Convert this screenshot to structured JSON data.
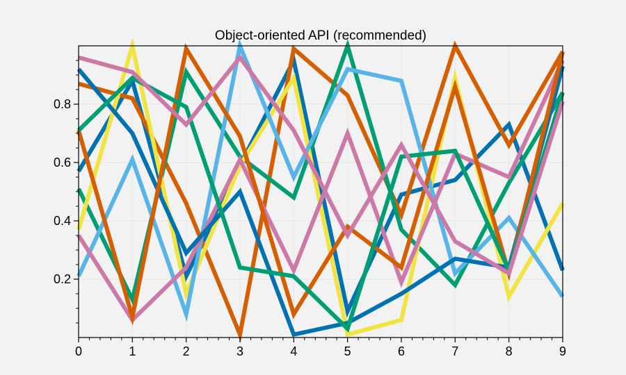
{
  "chart_data": {
    "type": "line",
    "title": "Object-oriented API (recommended)",
    "xlabel": "",
    "ylabel": "",
    "x": [
      0,
      1,
      2,
      3,
      4,
      5,
      6,
      7,
      8,
      9
    ],
    "xlim": [
      0,
      9
    ],
    "ylim": [
      0.0,
      1.0
    ],
    "x_ticks": [
      0,
      1,
      2,
      3,
      4,
      5,
      6,
      7,
      8,
      9
    ],
    "y_ticks": [
      0.2,
      0.4,
      0.6,
      0.8
    ],
    "x_tick_labels": [
      "0",
      "1",
      "2",
      "3",
      "4",
      "5",
      "6",
      "7",
      "8",
      "9"
    ],
    "y_tick_labels": [
      "0.2",
      "0.4",
      "0.6",
      "0.8"
    ],
    "grid": true,
    "legend": "none",
    "series": [
      {
        "color": "#0072B2",
        "values": [
          0.57,
          0.88,
          0.21,
          0.59,
          0.95,
          0.09,
          0.49,
          0.54,
          0.73,
          0.23
        ]
      },
      {
        "color": "#D55E00",
        "values": [
          0.87,
          0.82,
          0.46,
          0.01,
          0.99,
          0.83,
          0.42,
          1.0,
          0.66,
          0.98
        ]
      },
      {
        "color": "#009E73",
        "values": [
          0.51,
          0.13,
          0.91,
          0.62,
          0.48,
          1.0,
          0.37,
          0.18,
          0.53,
          0.84
        ]
      },
      {
        "color": "#F0E442",
        "values": [
          0.37,
          1.0,
          0.15,
          0.59,
          0.89,
          0.01,
          0.06,
          0.89,
          0.14,
          0.46
        ]
      },
      {
        "color": "#56B4E9",
        "values": [
          0.21,
          0.61,
          0.08,
          1.0,
          0.55,
          0.92,
          0.88,
          0.22,
          0.41,
          0.14
        ]
      },
      {
        "color": "#CC79A7",
        "values": [
          0.35,
          0.06,
          0.24,
          0.61,
          0.23,
          0.7,
          0.19,
          0.63,
          0.55,
          0.95
        ]
      },
      {
        "color": "#0072B2",
        "values": [
          0.92,
          0.7,
          0.29,
          0.5,
          0.01,
          0.05,
          0.15,
          0.27,
          0.24,
          0.93
        ]
      },
      {
        "color": "#D55E00",
        "values": [
          0.71,
          0.07,
          0.99,
          0.69,
          0.08,
          0.38,
          0.24,
          0.86,
          0.22,
          0.98
        ]
      },
      {
        "color": "#009E73",
        "values": [
          0.71,
          0.89,
          0.79,
          0.24,
          0.21,
          0.03,
          0.62,
          0.64,
          0.23,
          0.84
        ]
      },
      {
        "color": "#CC79A7",
        "values": [
          0.96,
          0.91,
          0.73,
          0.96,
          0.71,
          0.35,
          0.66,
          0.33,
          0.22,
          0.81
        ]
      }
    ]
  }
}
